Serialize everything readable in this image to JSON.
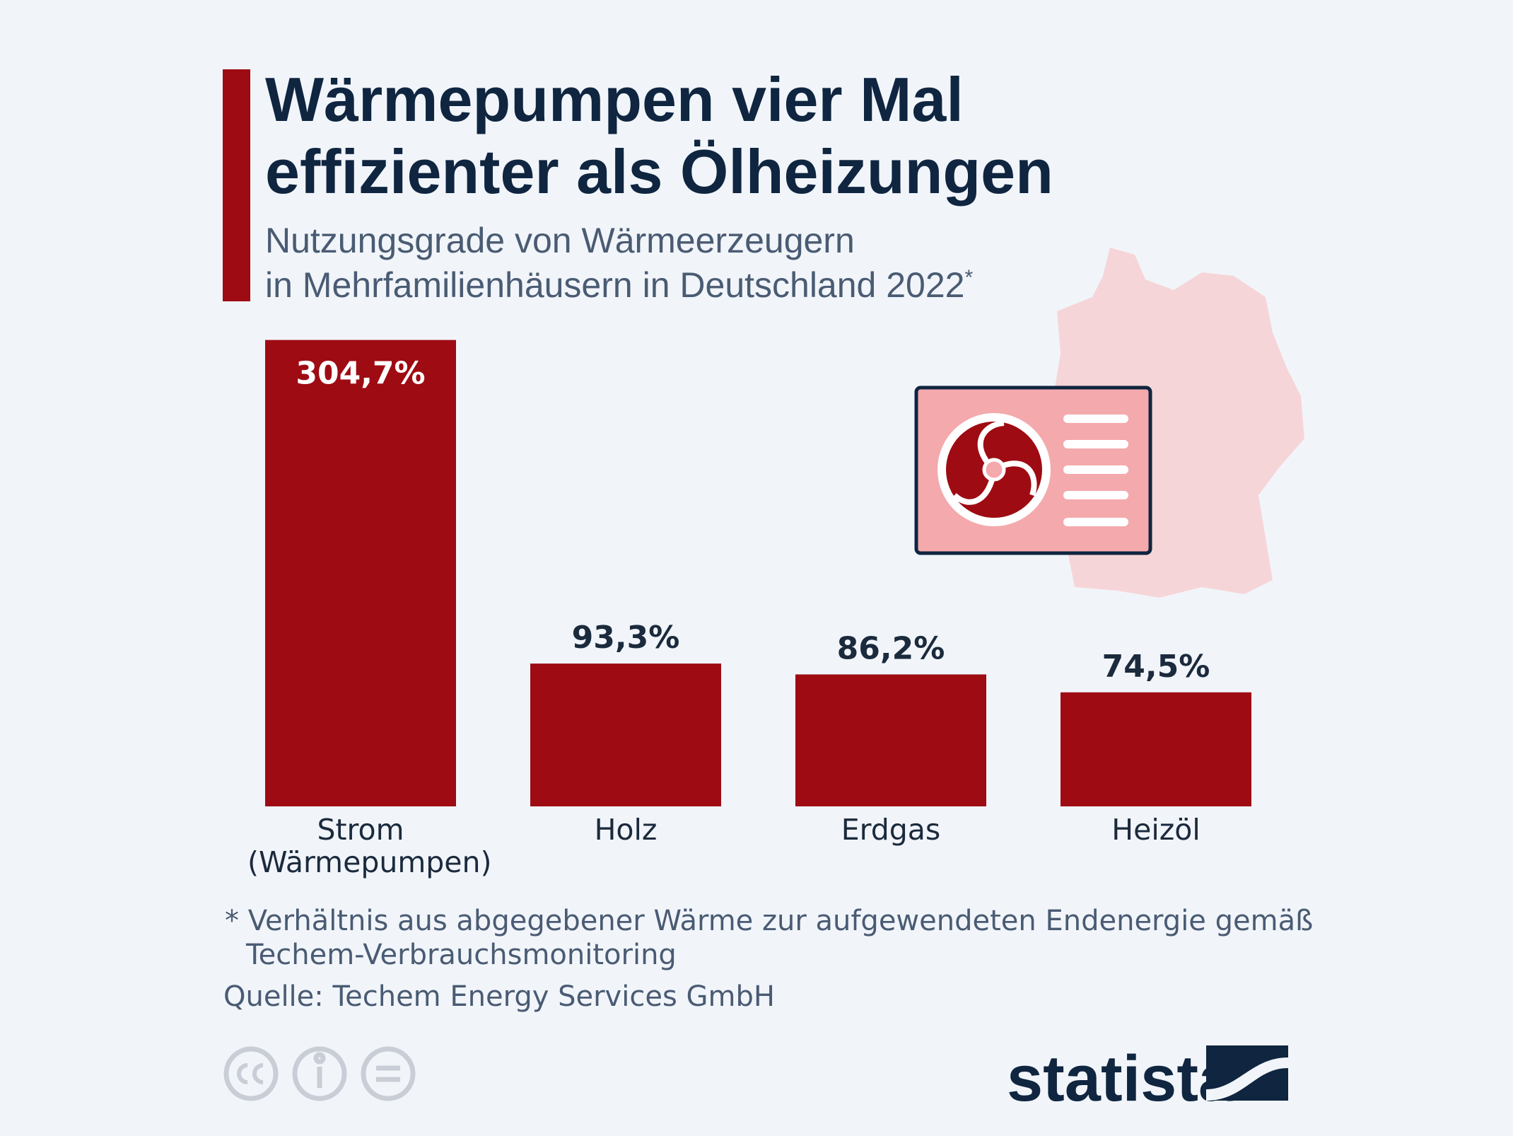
{
  "chart_data": {
    "type": "bar",
    "title": [
      "Wärmepumpen vier Mal",
      "effizienter als Ölheizungen"
    ],
    "subtitle": [
      "Nutzungsgrade von Wärmeerzeugern",
      "in Mehrfamilienhäusern in Deutschland 2022"
    ],
    "subtitle_marker": "*",
    "categories": [
      "Strom (Wärmepumpen)",
      "Holz",
      "Erdgas",
      "Heizöl"
    ],
    "values": [
      304.7,
      93.3,
      86.2,
      74.5
    ],
    "value_labels": [
      "304,7%",
      "93,3%",
      "86,2%",
      "74,5%"
    ],
    "color": "#9e0b12",
    "footnote": [
      "* Verhältnis aus abgegebener Wärme zur aufgewendeten Endenergie gemäß",
      "Techem-Verbrauchsmonitoring"
    ],
    "source": "Quelle: Techem Energy Services GmbH",
    "logo": "statista"
  }
}
